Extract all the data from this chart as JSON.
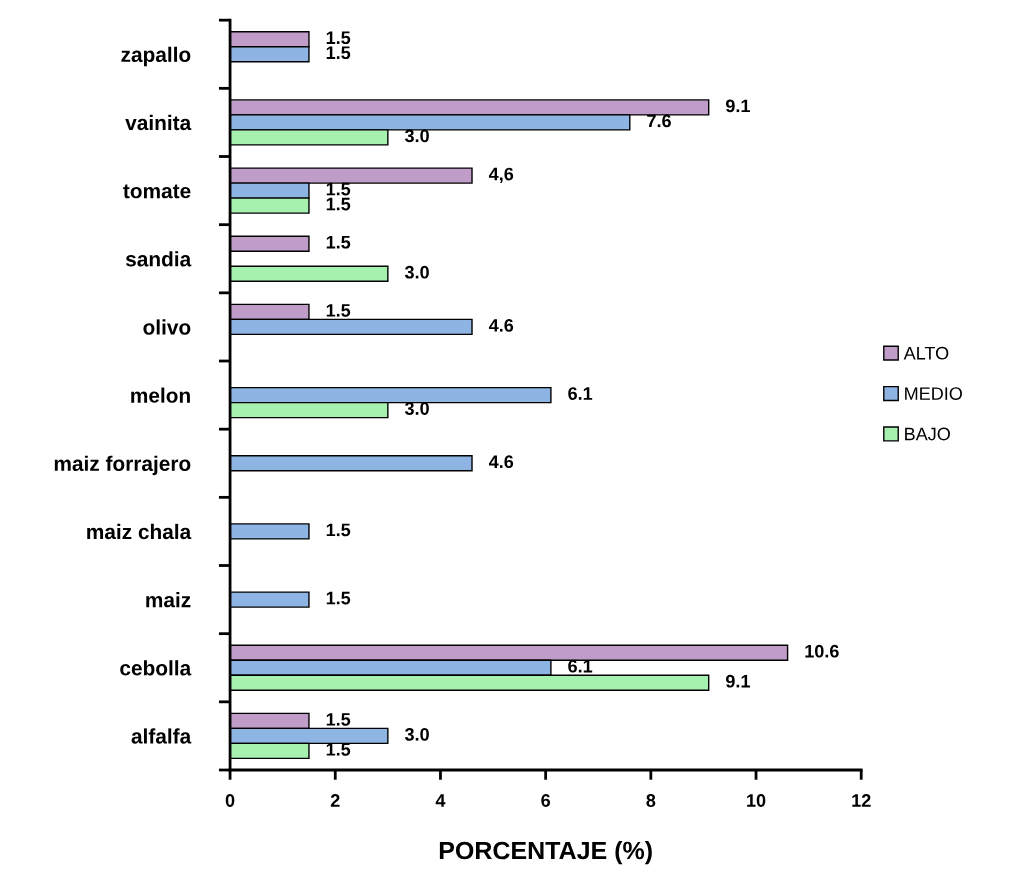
{
  "chart_data": {
    "type": "bar",
    "orientation": "horizontal",
    "xlabel": "PORCENTAJE (%)",
    "categories": [
      "zapallo",
      "vainita",
      "tomate",
      "sandia",
      "olivo",
      "melon",
      "maiz forrajero",
      "maiz chala",
      "maiz",
      "cebolla",
      "alfalfa"
    ],
    "series": [
      {
        "name": "ALTO",
        "color": "#c09cc8",
        "values": [
          1.5,
          9.1,
          4.6,
          1.5,
          1.5,
          null,
          null,
          null,
          null,
          10.6,
          1.5
        ],
        "value_labels": [
          "1.5",
          "9.1",
          "4,6",
          "1.5",
          "1.5",
          null,
          null,
          null,
          null,
          "10.6",
          "1.5"
        ]
      },
      {
        "name": "MEDIO",
        "color": "#8eb4e3",
        "values": [
          1.5,
          7.6,
          1.5,
          null,
          4.6,
          6.1,
          4.6,
          1.5,
          1.5,
          6.1,
          3.0
        ],
        "value_labels": [
          "1.5",
          "7.6",
          "1.5",
          null,
          "4.6",
          "6.1",
          "4.6",
          "1.5",
          "1.5",
          "6.1",
          "3.0"
        ]
      },
      {
        "name": "BAJO",
        "color": "#a6f0b0",
        "values": [
          null,
          3.0,
          1.5,
          3.0,
          null,
          3.0,
          null,
          null,
          null,
          9.1,
          1.5
        ],
        "value_labels": [
          null,
          "3.0",
          "1.5",
          "3.0",
          null,
          "3.0",
          null,
          null,
          null,
          "9.1",
          "1.5"
        ]
      }
    ],
    "xlim": [
      0,
      12
    ],
    "xticks": [
      0,
      2,
      4,
      6,
      8,
      10,
      12
    ],
    "grid": false,
    "legend": "right"
  }
}
